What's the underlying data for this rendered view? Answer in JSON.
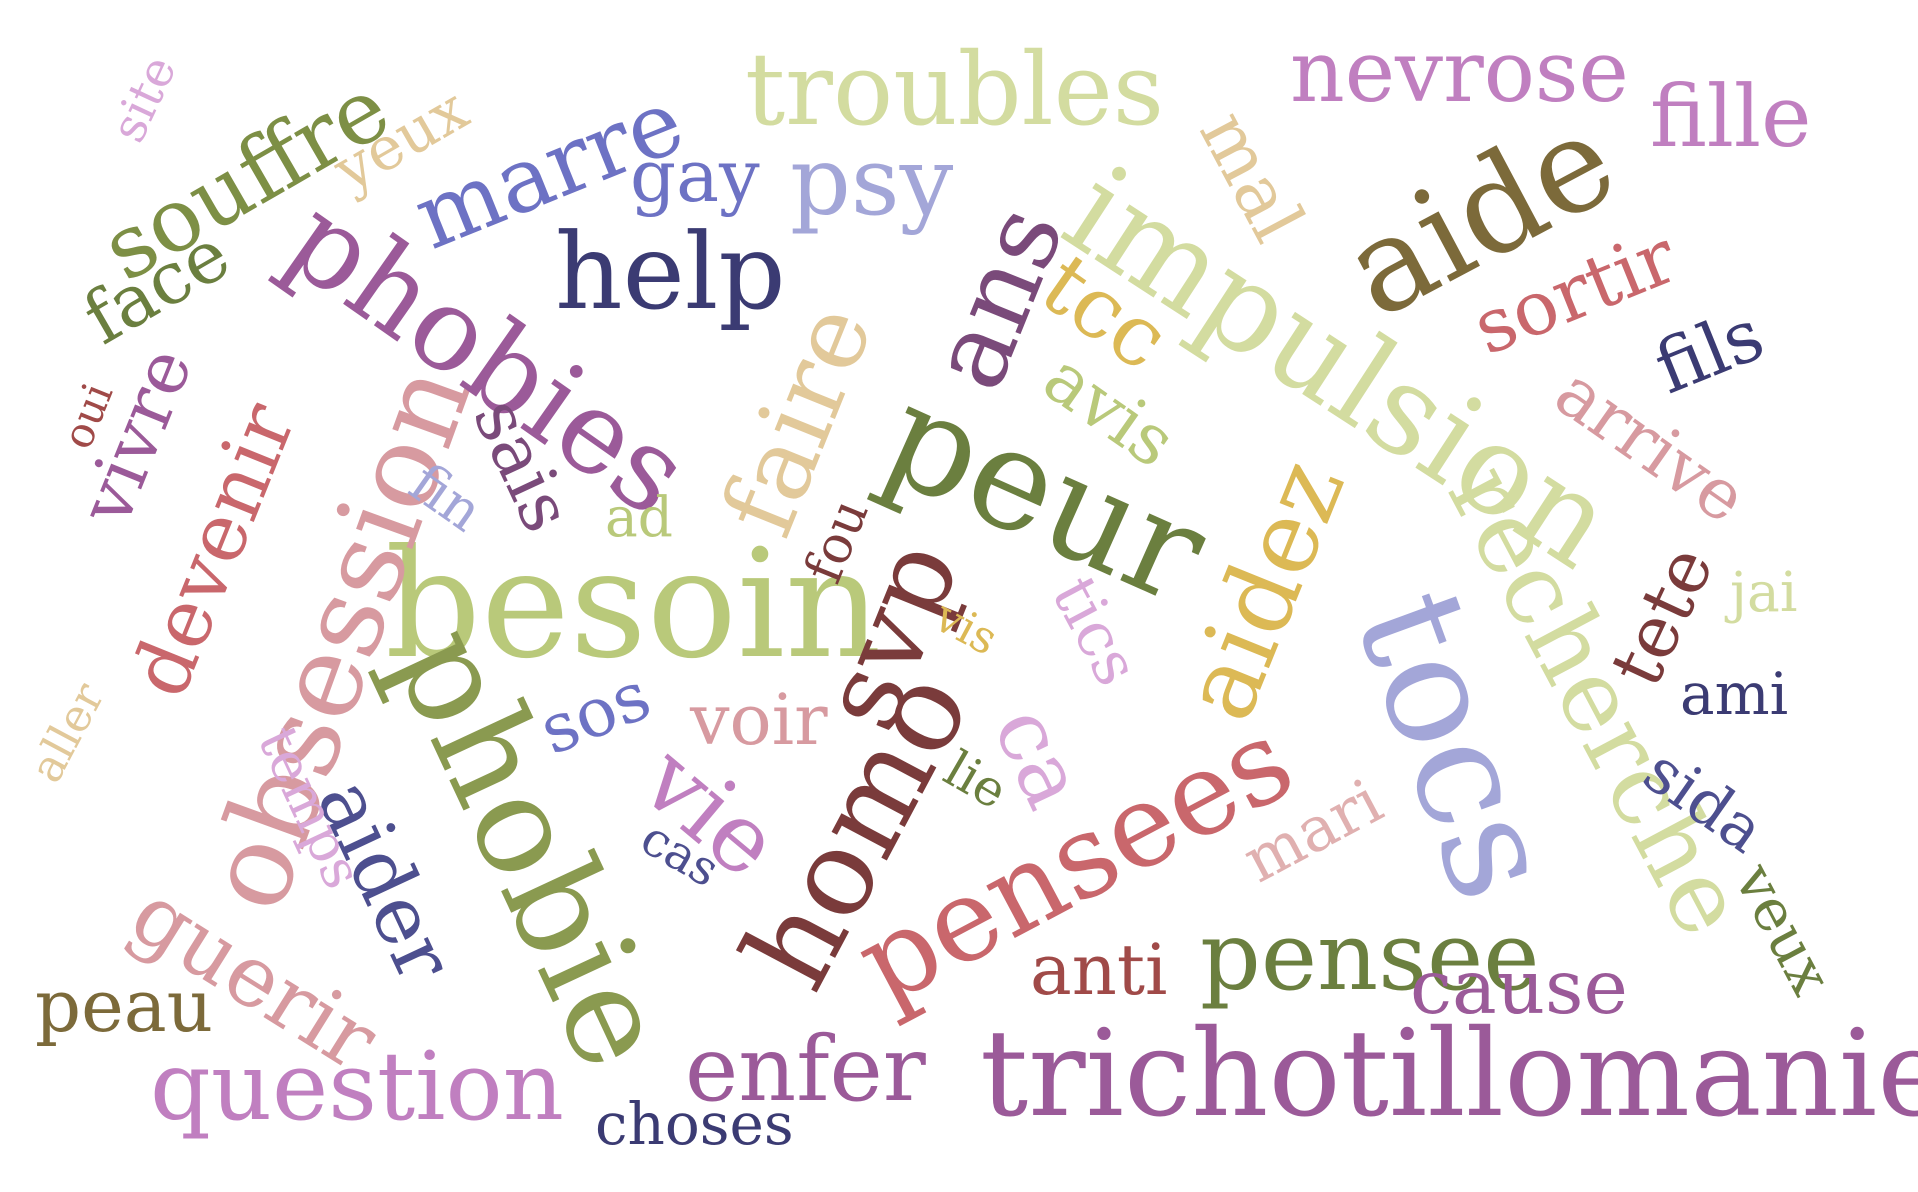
{
  "colors": {
    "background": "#ffffff",
    "olive_green": "#6b7f3f",
    "light_green": "#b9c97a",
    "pale_green": "#d3dca0",
    "navy": "#3b3b73",
    "periwinkle": "#6d72c4",
    "lavender": "#a3a6d8",
    "purple": "#9b5a99",
    "orchid": "#c07fc0",
    "pink": "#d79aa0",
    "rose": "#c9676c",
    "maroon": "#7a3b3b",
    "tan": "#e2c99a",
    "gold": "#dcb955",
    "olive_brown": "#7c6a3a"
  },
  "words": [
    {
      "text": "trichotillomanie",
      "color": "#9b5a99"
    },
    {
      "text": "besoin",
      "color": "#b9c97a"
    },
    {
      "text": "peur",
      "color": "#6b7f3f"
    },
    {
      "text": "tocs",
      "color": "#a3a6d8"
    },
    {
      "text": "impulsion",
      "color": "#d3dca0"
    },
    {
      "text": "phobie",
      "color": "#8a9a50"
    },
    {
      "text": "obsession",
      "color": "#d79aa0"
    },
    {
      "text": "pensees",
      "color": "#c9676c"
    },
    {
      "text": "aide",
      "color": "#7c6a3a"
    },
    {
      "text": "phobies",
      "color": "#9b5a99"
    },
    {
      "text": "help",
      "color": "#3b3b73"
    },
    {
      "text": "homo",
      "color": "#7a3b3b"
    },
    {
      "text": "recherche",
      "color": "#d3dca0"
    },
    {
      "text": "aidez",
      "color": "#dcb955"
    },
    {
      "text": "faire",
      "color": "#e2c99a"
    },
    {
      "text": "troubles",
      "color": "#d3dca0"
    },
    {
      "text": "marre",
      "color": "#6d72c4"
    },
    {
      "text": "souffre",
      "color": "#7d8f45"
    },
    {
      "text": "pensee",
      "color": "#6b7f3f"
    },
    {
      "text": "question",
      "color": "#c07fc0"
    },
    {
      "text": "nevrose",
      "color": "#c07fc0"
    },
    {
      "text": "fille",
      "color": "#c07fc0"
    },
    {
      "text": "enfer",
      "color": "#9b5a99"
    },
    {
      "text": "guerir",
      "color": "#d79aa0"
    },
    {
      "text": "devenir",
      "color": "#c9676c"
    },
    {
      "text": "aider",
      "color": "#4d4f8f"
    },
    {
      "text": "svp",
      "color": "#7a3b3b"
    },
    {
      "text": "ans",
      "color": "#7a4a7a"
    },
    {
      "text": "psy",
      "color": "#a3a6d8"
    },
    {
      "text": "vie",
      "color": "#c07fc0"
    },
    {
      "text": "ca",
      "color": "#d9a8d9"
    },
    {
      "text": "sortir",
      "color": "#c9676c"
    },
    {
      "text": "arrive",
      "color": "#d79aa0"
    },
    {
      "text": "tcc",
      "color": "#dcb955"
    },
    {
      "text": "avis",
      "color": "#b9c97a"
    },
    {
      "text": "mal",
      "color": "#e2c99a"
    },
    {
      "text": "vivre",
      "color": "#9b5a99"
    },
    {
      "text": "cause",
      "color": "#9b5a99"
    },
    {
      "text": "fils",
      "color": "#3b3b73"
    },
    {
      "text": "tete",
      "color": "#7a3b3b"
    },
    {
      "text": "sida",
      "color": "#4d4f8f"
    },
    {
      "text": "veux",
      "color": "#6b7f3f"
    },
    {
      "text": "gay",
      "color": "#6d72c4"
    },
    {
      "text": "face",
      "color": "#6b7f3f"
    },
    {
      "text": "yeux",
      "color": "#e2c99a"
    },
    {
      "text": "sais",
      "color": "#7a4a7a"
    },
    {
      "text": "voir",
      "color": "#d79aa0"
    },
    {
      "text": "sos",
      "color": "#6d72c4"
    },
    {
      "text": "tics",
      "color": "#d9a8d9"
    },
    {
      "text": "peau",
      "color": "#7c6a3a"
    },
    {
      "text": "temps",
      "color": "#d9a8d9"
    },
    {
      "text": "anti",
      "color": "#a04a48"
    },
    {
      "text": "mari",
      "color": "#e0b0b0"
    },
    {
      "text": "choses",
      "color": "#3b3b73"
    },
    {
      "text": "ami",
      "color": "#3b3b73"
    },
    {
      "text": "jai",
      "color": "#d3dca0"
    },
    {
      "text": "fou",
      "color": "#7a3b3b"
    },
    {
      "text": "ad",
      "color": "#b9c97a"
    },
    {
      "text": "fin",
      "color": "#a3a6d8"
    },
    {
      "text": "site",
      "color": "#d9a8d9"
    },
    {
      "text": "oui",
      "color": "#a04a48"
    },
    {
      "text": "aller",
      "color": "#e2c99a"
    },
    {
      "text": "vis",
      "color": "#dcb955"
    },
    {
      "text": "lie",
      "color": "#6b7f3f"
    },
    {
      "text": "cas",
      "color": "#4d4f8f"
    }
  ]
}
